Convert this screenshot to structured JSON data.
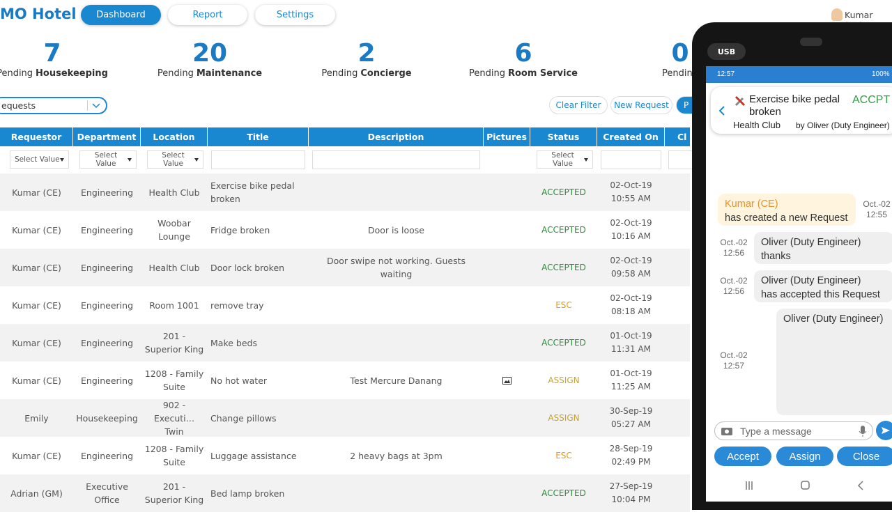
{
  "header": {
    "title": "MO Hotel",
    "tabs": [
      "Dashboard",
      "Report",
      "Settings"
    ],
    "user": "Kumar (CE)"
  },
  "stats": [
    {
      "count": 7,
      "prefix": "Pending",
      "category": "Housekeeping"
    },
    {
      "count": 20,
      "prefix": "Pending",
      "category": "Maintenance"
    },
    {
      "count": 2,
      "prefix": "Pending",
      "category": "Concierge"
    },
    {
      "count": 6,
      "prefix": "Pending",
      "category": "Room Service"
    },
    {
      "count": 0,
      "prefix": "Pending"
    }
  ],
  "filter": {
    "view": "equests",
    "buttons": [
      "Clear Filter",
      "New Request",
      "P"
    ]
  },
  "table": {
    "columns": [
      "Requestor",
      "Department",
      "Location",
      "Title",
      "Description",
      "Pictures",
      "Status",
      "Created On",
      "Cl"
    ],
    "filter_placeholder": "Select Value",
    "status_colors": {
      "ACCEPTED": "#2e8b3a",
      "ESC": "#e39a1c",
      "ASSIGN": "#c9a227"
    },
    "rows": [
      {
        "requestor": "Kumar (CE)",
        "department": "Engineering",
        "location": "Health Club",
        "title": "Exercise bike pedal broken",
        "status": "ACCEPTED",
        "date": "02-Oct-19",
        "time": "10:55 AM"
      },
      {
        "requestor": "Kumar (CE)",
        "department": "Engineering",
        "location": "Woobar Lounge",
        "title": "Fridge broken",
        "description": "Door is loose",
        "status": "ACCEPTED",
        "date": "02-Oct-19",
        "time": "10:16 AM"
      },
      {
        "requestor": "Kumar (CE)",
        "department": "Engineering",
        "location": "Health Club",
        "title": "Door lock broken",
        "description": "Door swipe not working. Guests waiting",
        "status": "ACCEPTED",
        "date": "02-Oct-19",
        "time": "09:58 AM"
      },
      {
        "requestor": "Kumar (CE)",
        "department": "Engineering",
        "location": "Room 1001",
        "title": "remove tray",
        "status": "ESC",
        "date": "02-Oct-19",
        "time": "08:18 AM"
      },
      {
        "requestor": "Kumar (CE)",
        "department": "Engineering",
        "location": "201 - Superior King",
        "title": "Make beds",
        "status": "ACCEPTED",
        "date": "01-Oct-19",
        "time": "11:31 AM"
      },
      {
        "requestor": "Kumar (CE)",
        "department": "Engineering",
        "location": "1208 - Family Suite",
        "title": "No hot water",
        "description": "Test Mercure Danang",
        "picture": true,
        "status": "ASSIGN",
        "date": "01-Oct-19",
        "time": "11:25 AM"
      },
      {
        "requestor": "Emily",
        "department": "Housekeeping",
        "location": "902 - Executi… Twin",
        "title": "Change pillows",
        "status": "ASSIGN",
        "date": "30-Sep-19",
        "time": "05:27 AM"
      },
      {
        "requestor": "Kumar (CE)",
        "department": "Engineering",
        "location": "1208 - Family Suite",
        "title": "Luggage assistance",
        "description": "2 heavy bags at 3pm",
        "status": "ESC",
        "date": "28-Sep-19",
        "time": "02:49 PM"
      },
      {
        "requestor": "Adrian (GM)",
        "department": "Executive Office",
        "location": "201 - Superior King",
        "title": "Bed lamp broken",
        "status": "ACCEPTED",
        "date": "27-Sep-19",
        "time": "10:04 PM"
      }
    ]
  },
  "phone": {
    "usb": "USB",
    "time": "12:57",
    "battery": "100%",
    "request_title": "Exercise bike pedal broken",
    "status": "ACCPT",
    "location": "Health Club",
    "assignee": "by Oliver (Duty Engineer)",
    "messages": [
      {
        "sender": "Kumar (CE)",
        "text": "has created a new Request",
        "date": "Oct.-02",
        "time": "12:55"
      },
      {
        "sender": "Oliver (Duty Engineer)",
        "text": "thanks",
        "date": "Oct.-02",
        "time": "12:56"
      },
      {
        "sender": "Oliver (Duty Engineer)",
        "text": "has accepted this Request",
        "date": "Oct.-02",
        "time": "12:56"
      },
      {
        "sender": "Oliver (Duty Engineer)",
        "date": "Oct.-02",
        "time": "12:57"
      }
    ],
    "input_placeholder": "Type a message",
    "actions": [
      "Accept",
      "Assign",
      "Close"
    ]
  }
}
